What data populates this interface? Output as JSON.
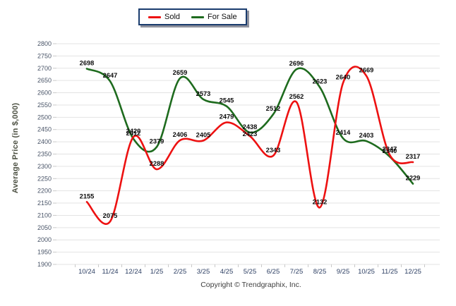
{
  "legend": {
    "items": [
      {
        "label": "Sold",
        "color": "#ed1111"
      },
      {
        "label": "For Sale",
        "color": "#1e6b1e"
      }
    ]
  },
  "y_axis_title": "Average Price (in $,000)",
  "footer": "Copyright © Trendgraphix, Inc.",
  "chart_data": {
    "type": "line",
    "title": "",
    "x": [
      "10/24",
      "11/24",
      "12/24",
      "1/25",
      "2/25",
      "3/25",
      "4/25",
      "5/25",
      "6/25",
      "7/25",
      "8/25",
      "9/25",
      "10/25",
      "11/25",
      "12/25"
    ],
    "series": [
      {
        "name": "Sold",
        "color": "#ed1111",
        "values": [
          2155,
          2075,
          2420,
          2288,
          2406,
          2405,
          2479,
          2423,
          2343,
          2562,
          2132,
          2640,
          2669,
          2347,
          2317
        ],
        "label_dy": {
          "7": 5
        }
      },
      {
        "name": "For Sale",
        "color": "#1e6b1e",
        "values": [
          2698,
          2647,
          2412,
          2379,
          2659,
          2573,
          2545,
          2438,
          2512,
          2696,
          2623,
          2414,
          2403,
          2340,
          2229
        ],
        "label_dy": {}
      }
    ],
    "xlabel": "",
    "ylabel": "Average Price (in $,000)",
    "ylim": [
      1900,
      2800
    ],
    "ytick_step": 50,
    "grid": "horizontal-only",
    "legend_position": "top-center",
    "point_labels": "on",
    "footer": "Copyright © Trendgraphix, Inc."
  },
  "colors": {
    "gridline": "#e3e3e3",
    "tick": "#c9c9c9",
    "y_tick_label": "#4a5568",
    "x_tick_label": "#2d3f63",
    "data_label": "#0d0d0d"
  }
}
